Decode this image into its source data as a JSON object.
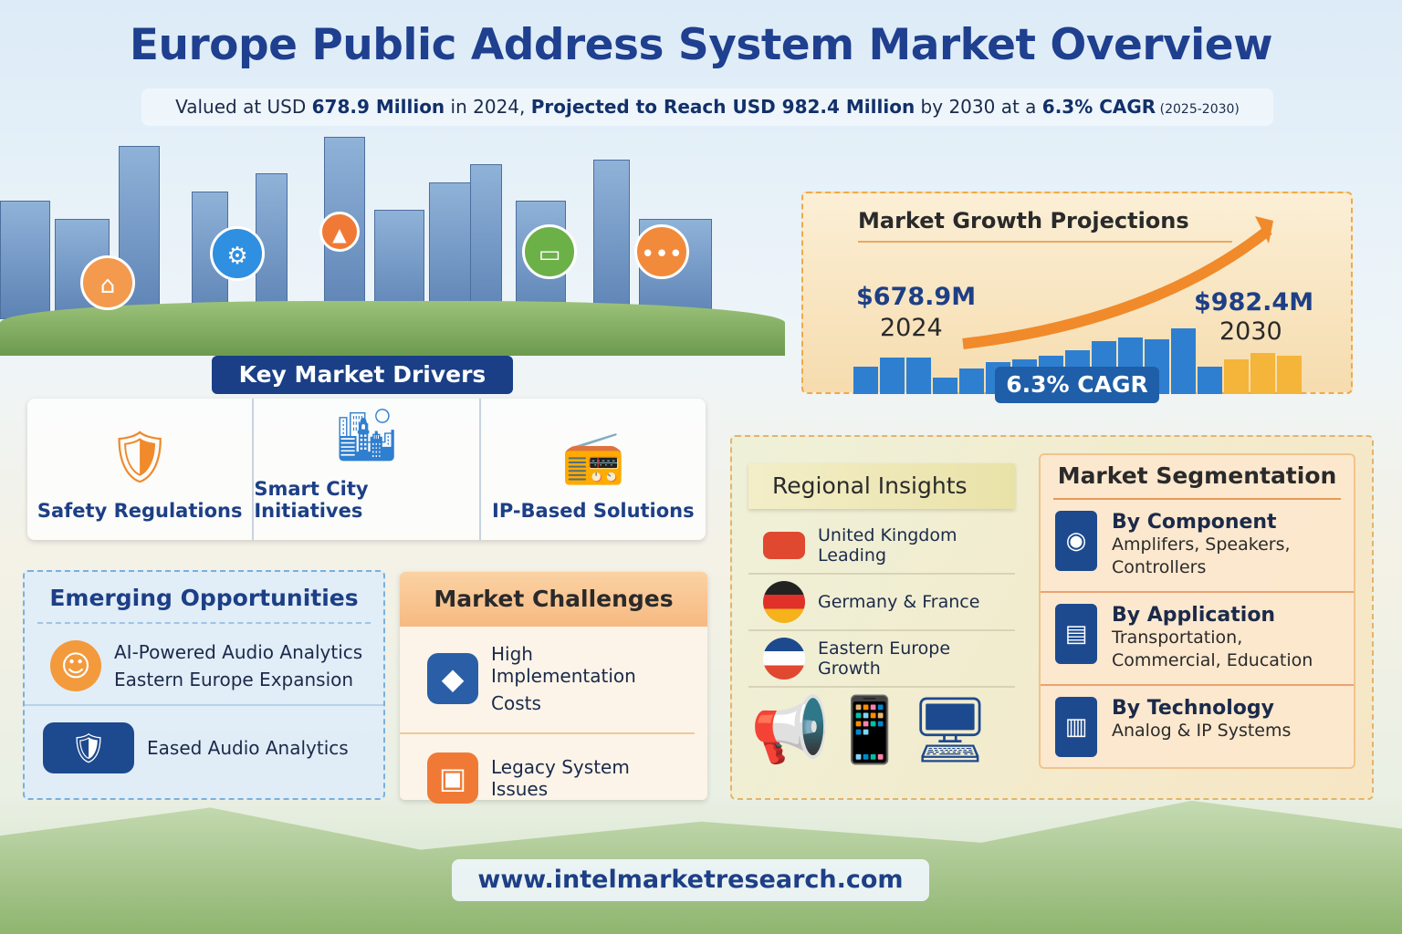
{
  "header": {
    "title": "Europe Public Address System Market Overview",
    "subtitle": {
      "p1": "Valued at USD ",
      "v1": "678.9 Million",
      "p2": " in 2024, ",
      "v2": "Projected to Reach USD 982.4 Million",
      "p3": " by 2030 at a ",
      "v3": "6.3% CAGR",
      "p4": " (2025-2030)"
    }
  },
  "growth": {
    "title": "Market Growth Projections",
    "start_value": "$678.9M",
    "start_year": "2024",
    "end_value": "$982.4M",
    "end_year": "2030",
    "cagr": "6.3% CAGR"
  },
  "drivers": {
    "label": "Key Market Drivers",
    "items": [
      {
        "label": "Safety Regulations",
        "icon": "shield-icon"
      },
      {
        "label": "Smart City Initiatives",
        "icon": "city-icon"
      },
      {
        "label": "IP-Based Solutions",
        "icon": "network-device-icon"
      }
    ]
  },
  "opportunities": {
    "title": "Emerging Opportunities",
    "items": [
      {
        "line1": "AI-Powered Audio Analytics",
        "line2": "Eastern Europe Expansion"
      },
      {
        "line1": "Eased Audio Analytics"
      }
    ]
  },
  "challenges": {
    "title": "Market Challenges",
    "items": [
      {
        "line1": "High Implementation",
        "line2": "Costs"
      },
      {
        "line1": "Legacy System Issues"
      }
    ]
  },
  "regional": {
    "title": "Regional Insights",
    "items": [
      {
        "label": "United Kingdom Leading"
      },
      {
        "label": "Germany & France"
      },
      {
        "label": "Eastern Europe Growth"
      }
    ]
  },
  "segmentation": {
    "title": "Market Segmentation",
    "items": [
      {
        "title": "By Component",
        "desc": "Amplifers, Speakers, Controllers"
      },
      {
        "title": "By Application",
        "desc": "Transportation, Commercial, Education"
      },
      {
        "title": "By Technology",
        "desc": "Analog & IP Systems"
      }
    ]
  },
  "footer": {
    "url": "www.intelmarketresearch.com"
  },
  "colors": {
    "navy": "#1f3f8f",
    "orange": "#f0a94a",
    "accent_blue": "#1f5ea8"
  }
}
